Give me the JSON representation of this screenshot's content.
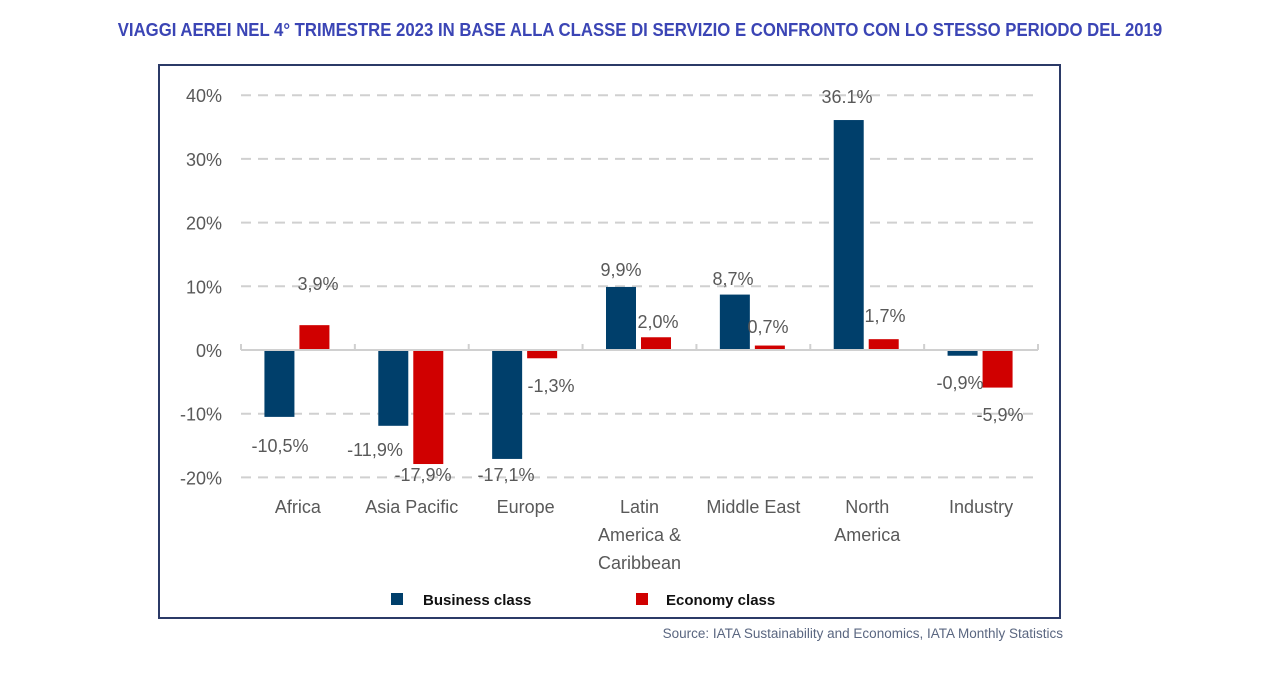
{
  "header": {
    "title": "VIAGGI AEREI NEL 4° TRIMESTRE 2023 IN BASE ALLA CLASSE DI SERVIZIO E CONFRONTO CON LO STESSO PERIODO DEL 2019"
  },
  "footer": {
    "source": "Source: IATA Sustainability and Economics, IATA Monthly Statistics"
  },
  "colors": {
    "business": "#003f6b",
    "economy": "#d00000",
    "title": "#3b45b5",
    "frame": "#2b3a67",
    "grid": "#d0d0d0",
    "text": "#595959"
  },
  "chart_data": {
    "type": "bar",
    "title": "VIAGGI AEREI NEL 4° TRIMESTRE 2023 IN BASE ALLA CLASSE DI SERVIZIO E CONFRONTO CON LO STESSO PERIODO DEL 2019",
    "xlabel": "",
    "ylabel": "",
    "ylim": [
      -20,
      40
    ],
    "yticks": [
      40,
      30,
      20,
      10,
      0,
      -10,
      -20
    ],
    "ytick_labels": [
      "40%",
      "30%",
      "20%",
      "10%",
      "0%",
      "-10%",
      "-20%"
    ],
    "grid": true,
    "legend_position": "bottom",
    "categories": [
      [
        "Africa"
      ],
      [
        "Asia Pacific"
      ],
      [
        "Europe"
      ],
      [
        "Latin",
        "America &",
        "Caribbean"
      ],
      [
        "Middle East"
      ],
      [
        "North",
        "America"
      ],
      [
        "Industry"
      ]
    ],
    "series": [
      {
        "name": "Business class",
        "color": "#003f6b",
        "values": [
          -10.5,
          -11.9,
          -17.1,
          9.9,
          8.7,
          36.1,
          -0.9
        ],
        "labels": [
          "-10,5%",
          "-11,9%",
          "-17,1%",
          "9,9%",
          "8,7%",
          "36.1%",
          "-0,9%"
        ]
      },
      {
        "name": "Economy class",
        "color": "#d00000",
        "values": [
          3.9,
          -17.9,
          -1.3,
          2.0,
          0.7,
          1.7,
          -5.9
        ],
        "labels": [
          "3,9%",
          "-17,9%",
          "-1,3%",
          "2,0%",
          "0,7%",
          "1,7%",
          "-5,9%"
        ]
      }
    ]
  }
}
